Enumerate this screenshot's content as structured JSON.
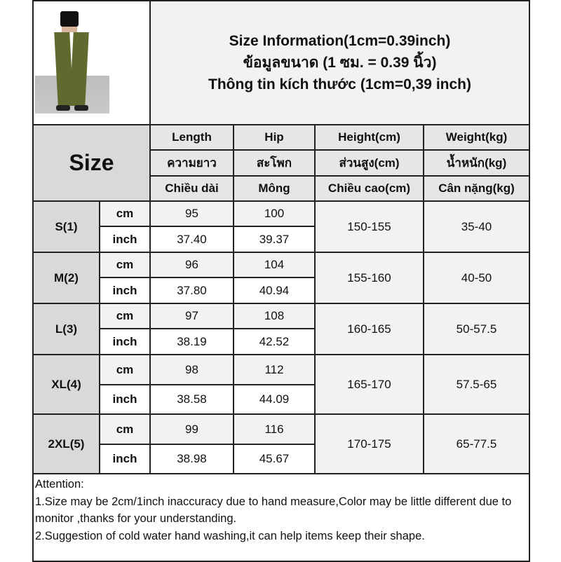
{
  "header": {
    "title_en": "Size Information(1cm=0.39inch)",
    "title_th": "ข้อมูลขนาด (1 ซม. = 0.39 นิ้ว)",
    "title_vi": "Thông tin kích thước (1cm=0,39 inch)"
  },
  "columns": {
    "size": "Size",
    "length": [
      "Length",
      "ความยาว",
      "Chiều dài"
    ],
    "hip": [
      "Hip",
      "สะโพก",
      "Mông"
    ],
    "height": [
      "Height(cm)",
      "ส่วนสูง(cm)",
      "Chiều cao(cm)"
    ],
    "weight": [
      "Weight(kg)",
      "น้ำหนัก(kg)",
      "Cân nặng(kg)"
    ]
  },
  "units": {
    "cm": "cm",
    "inch": "inch"
  },
  "rows": [
    {
      "size": "S(1)",
      "length_cm": "95",
      "hip_cm": "100",
      "length_in": "37.40",
      "hip_in": "39.37",
      "height": "150-155",
      "weight": "35-40"
    },
    {
      "size": "M(2)",
      "length_cm": "96",
      "hip_cm": "104",
      "length_in": "37.80",
      "hip_in": "40.94",
      "height": "155-160",
      "weight": "40-50"
    },
    {
      "size": "L(3)",
      "length_cm": "97",
      "hip_cm": "108",
      "length_in": "38.19",
      "hip_in": "42.52",
      "height": "160-165",
      "weight": "50-57.5"
    },
    {
      "size": "XL(4)",
      "length_cm": "98",
      "hip_cm": "112",
      "length_in": "38.58",
      "hip_in": "44.09",
      "height": "165-170",
      "weight": "57.5-65"
    },
    {
      "size": "2XL(5)",
      "length_cm": "99",
      "hip_cm": "116",
      "length_in": "38.98",
      "hip_in": "45.67",
      "height": "170-175",
      "weight": "65-77.5"
    }
  ],
  "attention": {
    "heading": "Attention:",
    "line1": "1.Size may be 2cm/1inch inaccuracy due to hand measure,Color may be little different due to monitor ,thanks for your understanding.",
    "line2": "2.Suggestion of cold water hand washing,it can help items keep their shape."
  },
  "colors": {
    "border": "#222222",
    "header_bg": "#e6e6e6",
    "size_bg": "#d9d9d9",
    "cm_row_bg": "#f2f2f2",
    "pants": "#5f6b2e"
  }
}
